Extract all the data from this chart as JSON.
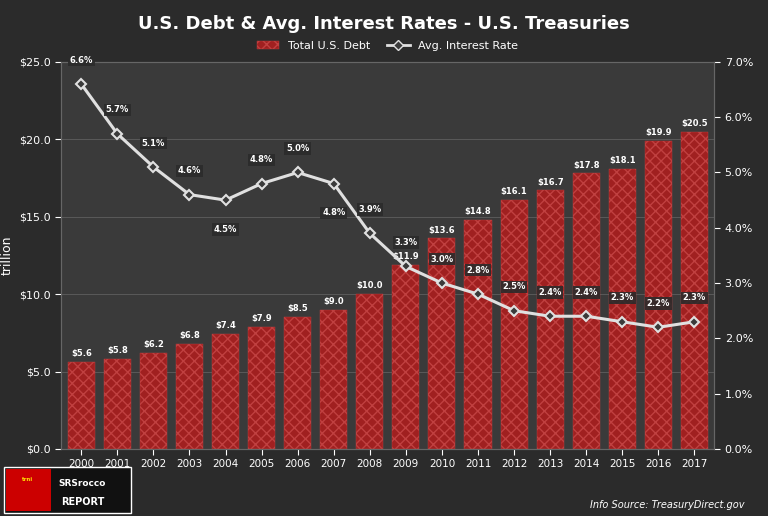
{
  "title": "U.S. Debt & Avg. Interest Rates - U.S. Treasuries",
  "years": [
    2000,
    2001,
    2002,
    2003,
    2004,
    2005,
    2006,
    2007,
    2008,
    2009,
    2010,
    2011,
    2012,
    2013,
    2014,
    2015,
    2016,
    2017
  ],
  "debt": [
    5.6,
    5.8,
    6.2,
    6.8,
    7.4,
    7.9,
    8.5,
    9.0,
    10.0,
    11.9,
    13.6,
    14.8,
    16.1,
    16.7,
    17.8,
    18.1,
    19.9,
    20.5
  ],
  "interest_rate": [
    6.6,
    5.7,
    5.1,
    4.6,
    4.5,
    4.8,
    5.0,
    4.8,
    3.9,
    3.3,
    3.0,
    2.8,
    2.5,
    2.4,
    2.4,
    2.3,
    2.2,
    2.3
  ],
  "bg_color": "#2b2b2b",
  "plot_bg_color": "#3a3a3a",
  "bar_face_color": "#a02020",
  "bar_hatch_color": "#c04040",
  "line_color": "#e0e0e0",
  "marker_face_color": "#3a3a3a",
  "text_color": "#ffffff",
  "grid_color": "#666666",
  "label_bg_color": "#2b2b2b",
  "ylabel_left": "trillion",
  "source_text": "Info Source: TreasuryDirect.gov",
  "legend_bar_label": "Total U.S. Debt",
  "legend_line_label": "Avg. Interest Rate",
  "ylim_left": [
    0,
    25
  ],
  "ylim_right": [
    0,
    7
  ],
  "yticks_left": [
    0,
    5,
    10,
    15,
    20,
    25
  ],
  "yticks_right": [
    0,
    1,
    2,
    3,
    4,
    5,
    6,
    7
  ],
  "debt_labels": [
    "$5.6",
    "$5.8",
    "$6.2",
    "$6.8",
    "$7.4",
    "$7.9",
    "$8.5",
    "$9.0",
    "$10.0",
    "$11.9",
    "$13.6",
    "$14.8",
    "$16.1",
    "$16.7",
    "$17.8",
    "$18.1",
    "$19.9",
    "$20.5"
  ],
  "rate_labels": [
    "6.6%",
    "5.7%",
    "5.1%",
    "4.6%",
    "4.5%",
    "4.8%",
    "5.0%",
    "4.8%",
    "3.9%",
    "3.3%",
    "3.0%",
    "2.8%",
    "2.5%",
    "2.4%",
    "2.4%",
    "2.3%",
    "2.2%",
    "2.3%"
  ]
}
